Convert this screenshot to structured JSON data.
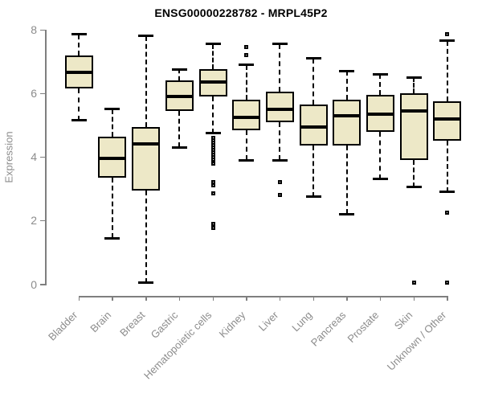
{
  "title": "ENSG00000228782 - MRPL45P2",
  "colors": {
    "box_fill": "#EDE8C7",
    "box_border": "#000000",
    "median": "#000000",
    "axis": "#7f7f7f",
    "label_text": "#8c8c8c",
    "title_text": "#000000",
    "background": "#ffffff"
  },
  "chart_data": {
    "type": "boxplot",
    "title": "ENSG00000228782 - MRPL45P2",
    "xlabel": "",
    "ylabel": "Expression",
    "ylim": [
      0,
      8
    ],
    "yticks": [
      0,
      2,
      4,
      6,
      8
    ],
    "grid": false,
    "legend": "none",
    "categories": [
      "Bladder",
      "Brain",
      "Breast",
      "Gastric",
      "Hematopoietic cells",
      "Kidney",
      "Liver",
      "Lung",
      "Pancreas",
      "Prostate",
      "Skin",
      "Unknown / Other"
    ],
    "series": [
      {
        "name": "Bladder",
        "low": 5.15,
        "q1": 6.15,
        "median": 6.65,
        "q3": 7.2,
        "high": 7.85,
        "outliers": []
      },
      {
        "name": "Brain",
        "low": 1.45,
        "q1": 3.35,
        "median": 3.95,
        "q3": 4.65,
        "high": 5.5,
        "outliers": []
      },
      {
        "name": "Breast",
        "low": 0.05,
        "q1": 2.95,
        "median": 4.4,
        "q3": 4.95,
        "high": 7.8,
        "outliers": []
      },
      {
        "name": "Gastric",
        "low": 4.3,
        "q1": 5.45,
        "median": 5.9,
        "q3": 6.4,
        "high": 6.75,
        "outliers": []
      },
      {
        "name": "Hematopoietic cells",
        "low": 4.75,
        "q1": 5.9,
        "median": 6.35,
        "q3": 6.75,
        "high": 7.55,
        "outliers": [
          4.6,
          4.52,
          4.45,
          4.38,
          4.3,
          4.22,
          4.15,
          4.08,
          4.0,
          3.92,
          3.85,
          3.8,
          3.2,
          3.1,
          2.85,
          1.9,
          1.78
        ]
      },
      {
        "name": "Kidney",
        "low": 3.9,
        "q1": 4.85,
        "median": 5.25,
        "q3": 5.8,
        "high": 6.9,
        "outliers": [
          7.45,
          7.2
        ]
      },
      {
        "name": "Liver",
        "low": 3.9,
        "q1": 5.1,
        "median": 5.5,
        "q3": 6.05,
        "high": 7.55,
        "outliers": [
          3.2,
          2.8
        ]
      },
      {
        "name": "Lung",
        "low": 2.75,
        "q1": 4.35,
        "median": 4.95,
        "q3": 5.65,
        "high": 7.1,
        "outliers": []
      },
      {
        "name": "Pancreas",
        "low": 2.2,
        "q1": 4.35,
        "median": 5.3,
        "q3": 5.8,
        "high": 6.7,
        "outliers": []
      },
      {
        "name": "Prostate",
        "low": 3.3,
        "q1": 4.8,
        "median": 5.35,
        "q3": 5.95,
        "high": 6.6,
        "outliers": []
      },
      {
        "name": "Skin",
        "low": 3.05,
        "q1": 3.9,
        "median": 5.45,
        "q3": 6.0,
        "high": 6.5,
        "outliers": [
          0.05
        ]
      },
      {
        "name": "Unknown / Other",
        "low": 2.9,
        "q1": 4.5,
        "median": 5.2,
        "q3": 5.75,
        "high": 7.65,
        "outliers": [
          7.85,
          2.25,
          0.05
        ]
      }
    ]
  },
  "layout_note": ""
}
